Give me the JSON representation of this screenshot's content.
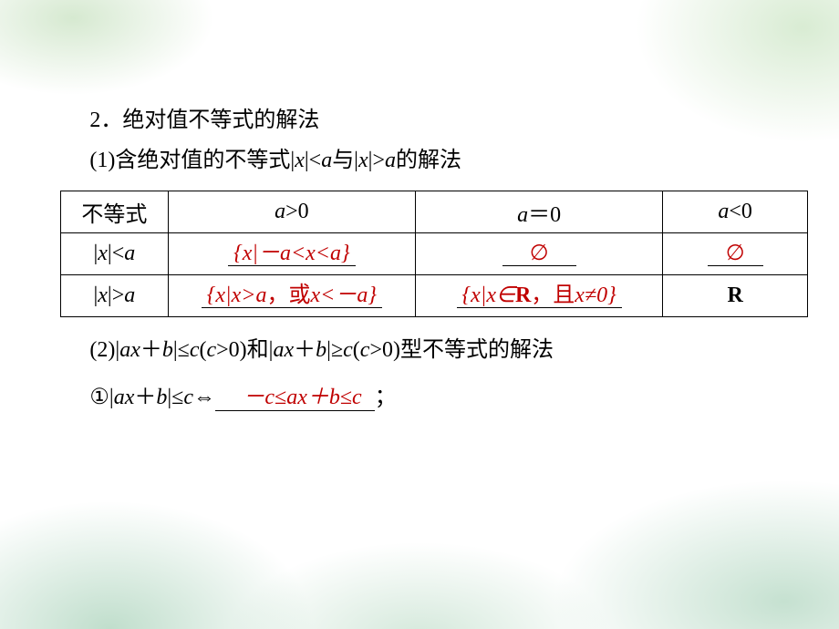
{
  "heading": "2．绝对值不等式的解法",
  "sub1_pre": "(1)含绝对值的不等式|",
  "sub1_x1": "x",
  "sub1_mid1": "|<",
  "sub1_a1": "a",
  "sub1_mid2": "与|",
  "sub1_x2": "x",
  "sub1_mid3": "|>",
  "sub1_a2": "a",
  "sub1_post": "的解法",
  "table": {
    "h1": "不等式",
    "h2_a": "a",
    "h2_op": ">0",
    "h3_a": "a",
    "h3_op": "＝0",
    "h4_a": "a",
    "h4_op": "<0",
    "r1_lhs_pre": "|",
    "r1_lhs_x": "x",
    "r1_lhs_mid": "|<",
    "r1_lhs_a": "a",
    "r1_c2": "{x|－a<x<a}",
    "r1_c3": "∅",
    "r1_c4": "∅",
    "r2_lhs_pre": "|",
    "r2_lhs_x": "x",
    "r2_lhs_mid": "|>",
    "r2_lhs_a": "a",
    "r2_c2_a": "{x|x>a",
    "r2_c2_b": "，或",
    "r2_c2_c": "x<－a}",
    "r2_c3_a": "{x|x∈",
    "r2_c3_R": "R",
    "r2_c3_b": "，且",
    "r2_c3_c": "x≠0}",
    "r2_c4": "R"
  },
  "sub2_pre": "(2)|",
  "sub2_ax": "ax",
  "sub2_mid1": "＋",
  "sub2_b1": "b",
  "sub2_mid2": "|≤",
  "sub2_c1": "c",
  "sub2_mid3": "(",
  "sub2_c2": "c",
  "sub2_mid4": ">0)和|",
  "sub2_ax2": "ax",
  "sub2_mid5": "＋",
  "sub2_b2": "b",
  "sub2_mid6": "|≥",
  "sub2_c3": "c",
  "sub2_mid7": "(",
  "sub2_c4": "c",
  "sub2_mid8": ">0)型不等式的解法",
  "item1_pre": "①|",
  "item1_ax": "ax",
  "item1_mid1": "＋",
  "item1_b": "b",
  "item1_mid2": "|≤",
  "item1_c": "c",
  "item1_iff": "⇔",
  "item1_ans": "－c≤ax＋b≤c",
  "item1_post": "；",
  "colors": {
    "answer": "#c00000",
    "text": "#000000",
    "bg": "#ffffff",
    "wash": "#a8cdaf"
  }
}
